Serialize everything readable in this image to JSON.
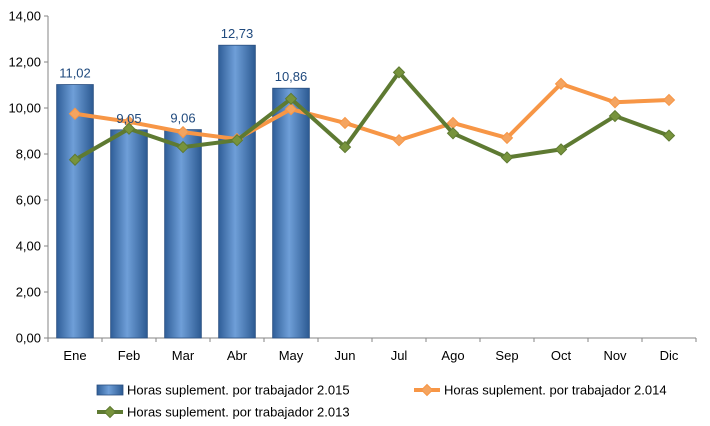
{
  "chart_data": {
    "type": "bar",
    "categories": [
      "Ene",
      "Feb",
      "Mar",
      "Abr",
      "May",
      "Jun",
      "Jul",
      "Ago",
      "Sep",
      "Oct",
      "Nov",
      "Dic"
    ],
    "ylim": [
      0,
      14
    ],
    "yticks": [
      "0,00",
      "2,00",
      "4,00",
      "6,00",
      "8,00",
      "10,00",
      "12,00",
      "14,00"
    ],
    "grid": false,
    "legend_position": "bottom",
    "series": [
      {
        "name": "Horas suplement. por trabajador 2.015",
        "type": "bar",
        "color": "#4a7ebb",
        "values": [
          11.02,
          9.05,
          9.06,
          12.73,
          10.86,
          null,
          null,
          null,
          null,
          null,
          null,
          null
        ],
        "labels": [
          "11,02",
          "9,05",
          "9,06",
          "12,73",
          "10,86"
        ]
      },
      {
        "name": "Horas suplement. por trabajador 2.014",
        "type": "line",
        "color": "#f79646",
        "marker_color": "#f4a460",
        "values": [
          9.75,
          9.4,
          8.95,
          8.65,
          9.95,
          9.35,
          8.6,
          9.35,
          8.7,
          11.05,
          10.25,
          10.35
        ]
      },
      {
        "name": "Horas suplement. por trabajador 2.013",
        "type": "line",
        "color": "#5e7a32",
        "marker_color": "#77933c",
        "values": [
          7.75,
          9.1,
          8.3,
          8.6,
          10.4,
          8.3,
          11.55,
          8.9,
          7.85,
          8.2,
          9.65,
          8.8
        ]
      }
    ]
  }
}
